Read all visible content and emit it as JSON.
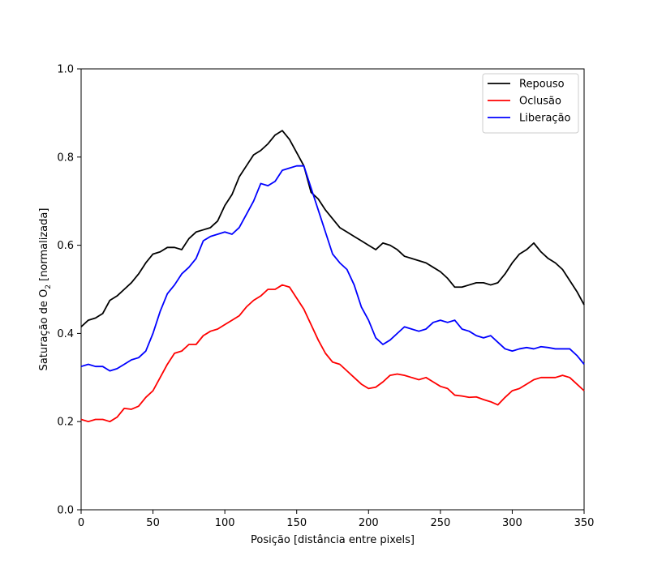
{
  "chart_data": {
    "type": "line",
    "title": "",
    "xlabel": "Posição [distância entre pixels]",
    "ylabel_prefix": "Saturação de O",
    "ylabel_subscript": "2",
    "ylabel_suffix": " [normalizada]",
    "xlim": [
      0,
      350
    ],
    "ylim": [
      0.0,
      1.0
    ],
    "xticks": [
      0,
      50,
      100,
      150,
      200,
      250,
      300,
      350
    ],
    "yticks": [
      0.0,
      0.2,
      0.4,
      0.6,
      0.8,
      1.0
    ],
    "xtick_labels": [
      "0",
      "50",
      "100",
      "150",
      "200",
      "250",
      "300",
      "350"
    ],
    "ytick_labels": [
      "0.0",
      "0.2",
      "0.4",
      "0.6",
      "0.8",
      "1.0"
    ],
    "grid": false,
    "legend_position": "top-right",
    "x": [
      0,
      5,
      10,
      15,
      20,
      25,
      30,
      35,
      40,
      45,
      50,
      55,
      60,
      65,
      70,
      75,
      80,
      85,
      90,
      95,
      100,
      105,
      110,
      115,
      120,
      125,
      130,
      135,
      140,
      145,
      150,
      155,
      160,
      165,
      170,
      175,
      180,
      185,
      190,
      195,
      200,
      205,
      210,
      215,
      220,
      225,
      230,
      235,
      240,
      245,
      250,
      255,
      260,
      265,
      270,
      275,
      280,
      285,
      290,
      295,
      300,
      305,
      310,
      315,
      320,
      325,
      330,
      335,
      340,
      345,
      350
    ],
    "series": [
      {
        "name": "Repouso",
        "color": "#000000",
        "values": [
          0.415,
          0.43,
          0.435,
          0.445,
          0.475,
          0.485,
          0.5,
          0.515,
          0.535,
          0.56,
          0.58,
          0.585,
          0.595,
          0.595,
          0.59,
          0.615,
          0.63,
          0.635,
          0.64,
          0.655,
          0.69,
          0.715,
          0.755,
          0.78,
          0.805,
          0.815,
          0.83,
          0.85,
          0.86,
          0.84,
          0.81,
          0.78,
          0.72,
          0.705,
          0.68,
          0.66,
          0.64,
          0.63,
          0.62,
          0.61,
          0.6,
          0.59,
          0.605,
          0.6,
          0.59,
          0.575,
          0.57,
          0.565,
          0.56,
          0.55,
          0.54,
          0.525,
          0.505,
          0.505,
          0.51,
          0.515,
          0.515,
          0.51,
          0.515,
          0.535,
          0.56,
          0.58,
          0.59,
          0.605,
          0.585,
          0.57,
          0.56,
          0.545,
          0.52,
          0.495,
          0.465
        ]
      },
      {
        "name": "Oclusão",
        "color": "#ff0000",
        "values": [
          0.205,
          0.2,
          0.205,
          0.205,
          0.2,
          0.21,
          0.23,
          0.228,
          0.235,
          0.255,
          0.27,
          0.3,
          0.33,
          0.355,
          0.36,
          0.375,
          0.375,
          0.395,
          0.405,
          0.41,
          0.42,
          0.43,
          0.44,
          0.46,
          0.475,
          0.485,
          0.5,
          0.5,
          0.51,
          0.505,
          0.48,
          0.455,
          0.42,
          0.385,
          0.355,
          0.335,
          0.33,
          0.315,
          0.3,
          0.285,
          0.275,
          0.278,
          0.29,
          0.305,
          0.308,
          0.305,
          0.3,
          0.295,
          0.3,
          0.29,
          0.28,
          0.275,
          0.26,
          0.258,
          0.255,
          0.256,
          0.25,
          0.245,
          0.238,
          0.255,
          0.27,
          0.275,
          0.285,
          0.295,
          0.3,
          0.3,
          0.3,
          0.305,
          0.3,
          0.285,
          0.27
        ]
      },
      {
        "name": "Liberação",
        "color": "#0000ff",
        "values": [
          0.325,
          0.33,
          0.325,
          0.325,
          0.315,
          0.32,
          0.33,
          0.34,
          0.345,
          0.36,
          0.4,
          0.45,
          0.49,
          0.51,
          0.535,
          0.55,
          0.57,
          0.61,
          0.62,
          0.625,
          0.63,
          0.625,
          0.64,
          0.67,
          0.7,
          0.74,
          0.735,
          0.745,
          0.77,
          0.775,
          0.78,
          0.78,
          0.73,
          0.68,
          0.63,
          0.58,
          0.56,
          0.545,
          0.51,
          0.46,
          0.43,
          0.39,
          0.375,
          0.385,
          0.4,
          0.415,
          0.41,
          0.405,
          0.41,
          0.425,
          0.43,
          0.425,
          0.43,
          0.41,
          0.405,
          0.395,
          0.39,
          0.395,
          0.38,
          0.365,
          0.36,
          0.365,
          0.368,
          0.365,
          0.37,
          0.368,
          0.365,
          0.365,
          0.365,
          0.35,
          0.33
        ]
      }
    ]
  }
}
